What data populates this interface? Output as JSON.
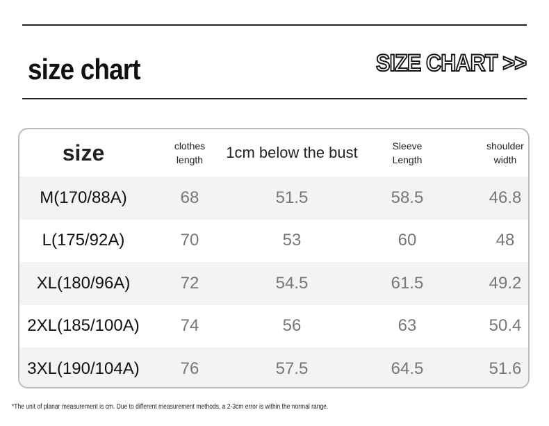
{
  "header": {
    "title": "size chart",
    "badge": "SIZE CHART >>"
  },
  "table": {
    "columns": [
      "size",
      "clothes length",
      "1cm below the bust",
      "Sleeve Length",
      "shoulder width"
    ],
    "rows": [
      [
        "M(170/88A)",
        68,
        51.5,
        58.5,
        46.8
      ],
      [
        "L(175/92A)",
        70,
        53,
        60,
        48
      ],
      [
        "XL(180/96A)",
        72,
        54.5,
        61.5,
        49.2
      ],
      [
        "2XL(185/100A)",
        74,
        56,
        63,
        50.4
      ],
      [
        "3XL(190/104A)",
        76,
        57.5,
        64.5,
        51.6
      ]
    ]
  },
  "footnote": "*The unit of planar measurement is cm. Due to different measurement methods, a 2-3cm error is within the normal range."
}
